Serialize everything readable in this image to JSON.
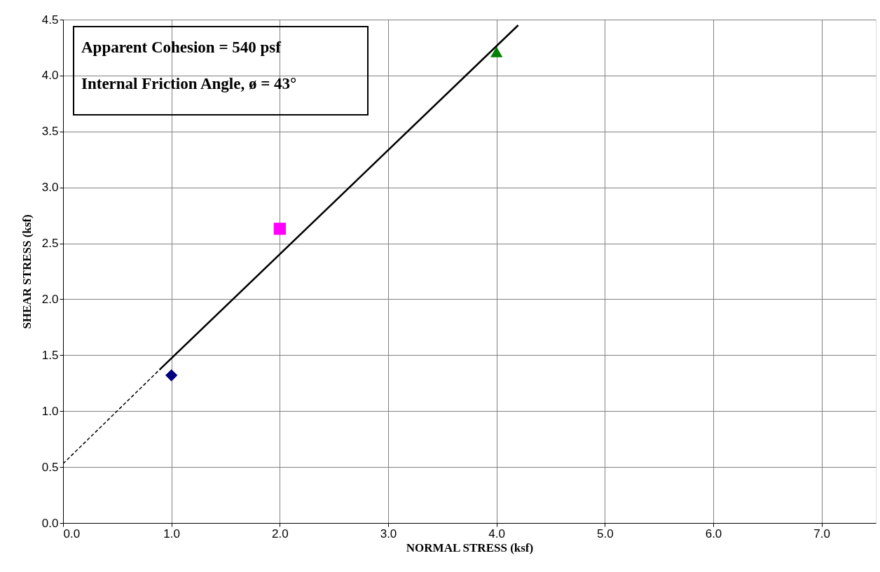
{
  "chart_data": {
    "type": "scatter",
    "xlabel": "NORMAL STRESS (ksf)",
    "ylabel": "SHEAR STRESS (ksf)",
    "xlim": [
      0,
      7.5
    ],
    "ylim": [
      0,
      4.5
    ],
    "xticks": [
      {
        "value": 0,
        "label": "0.0"
      },
      {
        "value": 1,
        "label": "1.0"
      },
      {
        "value": 2,
        "label": "2.0"
      },
      {
        "value": 3,
        "label": "3.0"
      },
      {
        "value": 4,
        "label": "4.0"
      },
      {
        "value": 5,
        "label": "5.0"
      },
      {
        "value": 6,
        "label": "6.0"
      },
      {
        "value": 7,
        "label": "7.0"
      }
    ],
    "yticks": [
      {
        "value": 0,
        "label": "0.0"
      },
      0.5,
      {
        "value": 1,
        "label": "1.0"
      },
      1.5,
      {
        "value": 2,
        "label": "2.0"
      },
      2.5,
      {
        "value": 3,
        "label": "3.0"
      },
      3.5,
      {
        "value": 4,
        "label": "4.0"
      },
      4.5
    ],
    "grid": true,
    "annotations": [
      "Apparent Cohesion = 540 psf",
      "Internal Friction Angle, ø = 43°"
    ],
    "series": [
      {
        "type": "scatter",
        "color": "#000080",
        "marker": "diamond",
        "x": [
          1.0
        ],
        "values": [
          1.32
        ]
      },
      {
        "type": "scatter",
        "color": "#ff00ff",
        "marker": "square",
        "x": [
          2.0
        ],
        "values": [
          2.63
        ]
      },
      {
        "type": "scatter",
        "color": "#008000",
        "marker": "triangle",
        "x": [
          4.0
        ],
        "values": [
          4.21
        ]
      },
      {
        "type": "line",
        "color": "#000000",
        "line_style": "solid",
        "x": [
          0.89,
          4.2
        ],
        "values": [
          1.37,
          4.45
        ]
      },
      {
        "type": "line",
        "color": "#000000",
        "line_style": "dashed",
        "x": [
          0,
          0.89
        ],
        "values": [
          0.53,
          1.37
        ]
      }
    ]
  }
}
